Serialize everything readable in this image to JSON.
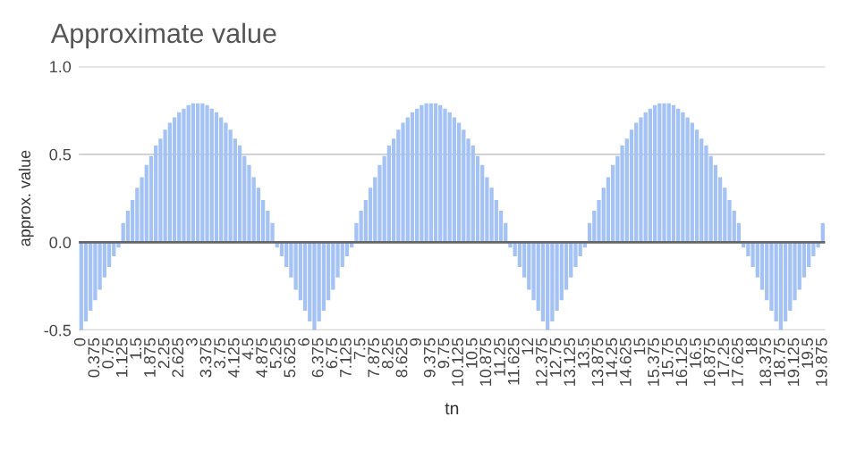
{
  "chart_data": {
    "type": "bar",
    "title": "Approximate value",
    "xlabel": "tn",
    "ylabel": "approx. value",
    "categories": [
      "0",
      null,
      null,
      "0.375",
      null,
      null,
      "0.75",
      null,
      null,
      "1.125",
      null,
      null,
      "1.5",
      null,
      null,
      "1.875",
      null,
      null,
      "2.25",
      null,
      null,
      "2.625",
      null,
      null,
      "3",
      null,
      null,
      "3.375",
      null,
      null,
      "3.75",
      null,
      null,
      "4.125",
      null,
      null,
      "4.5",
      null,
      null,
      "4.875",
      null,
      null,
      "5.25",
      null,
      null,
      "5.625",
      null,
      null,
      "6",
      null,
      null,
      "6.375",
      null,
      null,
      "6.75",
      null,
      null,
      "7.125",
      null,
      null,
      "7.5",
      null,
      null,
      "7.875",
      null,
      null,
      "8.25",
      null,
      null,
      "8.625",
      null,
      null,
      "9",
      null,
      null,
      "9.375",
      null,
      null,
      "9.75",
      null,
      null,
      "10.125",
      null,
      null,
      "10.5",
      null,
      null,
      "10.875",
      null,
      null,
      "11.25",
      null,
      null,
      "11.625",
      null,
      null,
      "12",
      null,
      null,
      "12.375",
      null,
      null,
      "12.75",
      null,
      null,
      "13.125",
      null,
      null,
      "13.5",
      null,
      null,
      "13.875",
      null,
      null,
      "14.25",
      null,
      null,
      "14.625",
      null,
      null,
      "15",
      null,
      null,
      "15.375",
      null,
      null,
      "15.75",
      null,
      null,
      "16.125",
      null,
      null,
      "16.5",
      null,
      null,
      "16.875",
      null,
      null,
      "17.25",
      null,
      null,
      "17.625",
      null,
      null,
      "18",
      null,
      null,
      "18.375",
      null,
      null,
      "18.75",
      null,
      null,
      "19.125",
      null,
      null,
      "19.5",
      null,
      null,
      "19.875"
    ],
    "values": [
      -0.5,
      -0.45,
      -0.39,
      -0.33,
      -0.27,
      -0.2,
      -0.14,
      -0.08,
      -0.03,
      0.11,
      0.18,
      0.24,
      0.31,
      0.37,
      0.44,
      0.49,
      0.55,
      0.59,
      0.64,
      0.68,
      0.71,
      0.74,
      0.76,
      0.78,
      0.79,
      0.79,
      0.79,
      0.78,
      0.76,
      0.74,
      0.71,
      0.68,
      0.64,
      0.59,
      0.55,
      0.49,
      0.44,
      0.37,
      0.31,
      0.24,
      0.18,
      0.11,
      -0.03,
      -0.08,
      -0.14,
      -0.2,
      -0.27,
      -0.33,
      -0.39,
      -0.45,
      -0.5,
      -0.45,
      -0.39,
      -0.33,
      -0.27,
      -0.2,
      -0.14,
      -0.08,
      -0.03,
      0.11,
      0.18,
      0.24,
      0.31,
      0.37,
      0.44,
      0.49,
      0.55,
      0.59,
      0.64,
      0.68,
      0.71,
      0.74,
      0.76,
      0.78,
      0.79,
      0.79,
      0.79,
      0.78,
      0.76,
      0.74,
      0.71,
      0.68,
      0.64,
      0.59,
      0.55,
      0.49,
      0.44,
      0.37,
      0.31,
      0.24,
      0.18,
      0.11,
      -0.03,
      -0.08,
      -0.14,
      -0.2,
      -0.27,
      -0.33,
      -0.39,
      -0.45,
      -0.5,
      -0.45,
      -0.39,
      -0.33,
      -0.27,
      -0.2,
      -0.14,
      -0.08,
      -0.03,
      0.11,
      0.18,
      0.24,
      0.31,
      0.37,
      0.44,
      0.49,
      0.55,
      0.59,
      0.64,
      0.68,
      0.71,
      0.74,
      0.76,
      0.78,
      0.79,
      0.79,
      0.79,
      0.78,
      0.76,
      0.74,
      0.71,
      0.68,
      0.64,
      0.59,
      0.55,
      0.49,
      0.44,
      0.37,
      0.31,
      0.24,
      0.18,
      0.11,
      -0.03,
      -0.08,
      -0.14,
      -0.2,
      -0.27,
      -0.33,
      -0.39,
      -0.45,
      -0.5,
      -0.45,
      -0.39,
      -0.33,
      -0.27,
      -0.2,
      -0.14,
      -0.08,
      -0.03,
      0.11
    ],
    "color": "#a4c2f4",
    "ylim": [
      -0.5,
      1.0
    ],
    "yticks": [
      {
        "value": -0.5,
        "label": "-0.5"
      },
      {
        "value": 0,
        "label": "0.0"
      },
      {
        "value": 0.5,
        "label": "0.5"
      },
      {
        "value": 1.0,
        "label": "1.0"
      }
    ],
    "grid": "y"
  }
}
